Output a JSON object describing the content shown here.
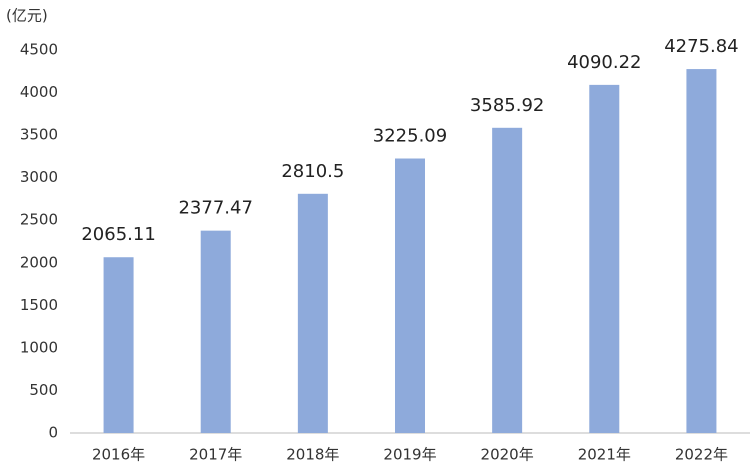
{
  "chart_data": {
    "type": "bar",
    "unit_label": "(亿元)",
    "categories": [
      "2016年",
      "2017年",
      "2018年",
      "2019年",
      "2020年",
      "2021年",
      "2022年"
    ],
    "values": [
      2065.11,
      2377.47,
      2810.5,
      3225.09,
      3585.92,
      4090.22,
      4275.84
    ],
    "color": "#8eaadb",
    "ylim": [
      0,
      4500
    ],
    "yticks": [
      0,
      500,
      1000,
      1500,
      2000,
      2500,
      3000,
      3500,
      4000,
      4500
    ],
    "grid": false
  }
}
